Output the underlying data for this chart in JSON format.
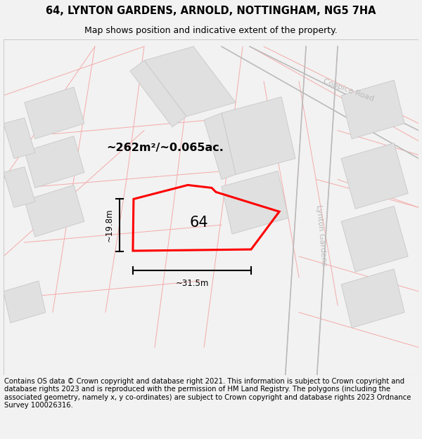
{
  "title": "64, LYNTON GARDENS, ARNOLD, NOTTINGHAM, NG5 7HA",
  "subtitle": "Map shows position and indicative extent of the property.",
  "footer": "Contains OS data © Crown copyright and database right 2021. This information is subject to Crown copyright and database rights 2023 and is reproduced with the permission of HM Land Registry. The polygons (including the associated geometry, namely x, y co-ordinates) are subject to Crown copyright and database rights 2023 Ordnance Survey 100026316.",
  "bg_color": "#f2f2f2",
  "map_bg": "#ffffff",
  "area_label": "~262m²/~0.065ac.",
  "number_label": "64",
  "width_label": "~31.5m",
  "height_label": "~19.8m",
  "road_label_1": "Coppice Road",
  "road_label_2": "Lynton Gardens",
  "title_fontsize": 10.5,
  "subtitle_fontsize": 9,
  "footer_fontsize": 7.2,
  "pink_line_color": "#f5aaaa",
  "gray_line_color": "#bbbbbb",
  "building_color": "#e0e0e0",
  "building_edge_color": "#c8c8c8"
}
